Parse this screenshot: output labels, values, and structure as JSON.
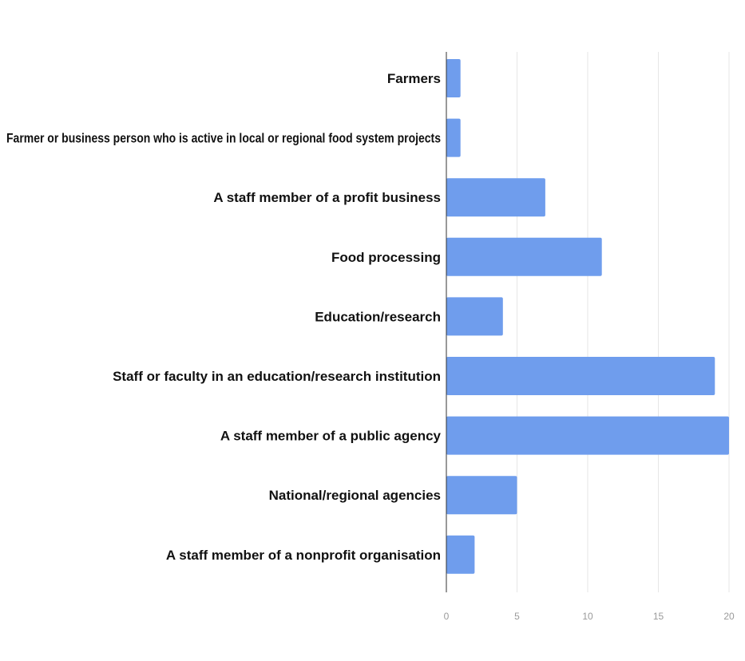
{
  "chart_data": {
    "type": "bar",
    "orientation": "horizontal",
    "categories": [
      "Farmers",
      "Farmer or business person who is active in local or regional food system projects",
      "A staff member of a profit business",
      "Food processing",
      "Education/research",
      "Staff or faculty in an education/research institution",
      "A staff member of a public agency",
      "National/regional agencies",
      "A staff member of a nonprofit organisation"
    ],
    "values": [
      1,
      1,
      7,
      11,
      4,
      19,
      20,
      5,
      2
    ],
    "xlim": [
      0,
      20
    ],
    "xticks": [
      "0",
      "5",
      "10",
      "15",
      "20"
    ],
    "title": "",
    "xlabel": "",
    "ylabel": "",
    "grid": true,
    "legend": "none",
    "bar_color": "#6f9ded"
  }
}
